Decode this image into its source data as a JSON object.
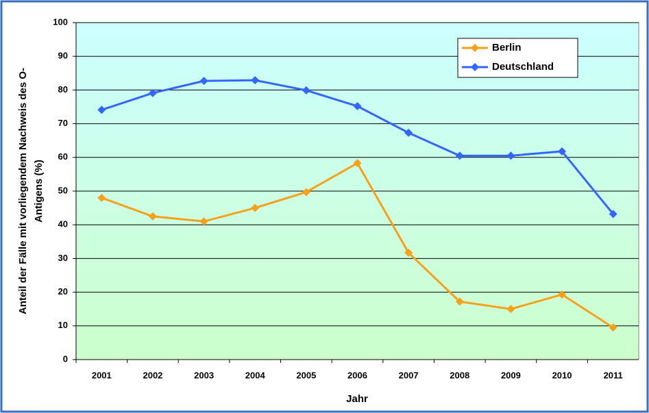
{
  "chart_data": {
    "type": "line",
    "ylabel": [
      "Anteil der Fälle mit vorliegendem Nachweis des O-",
      "Antigens (%)"
    ],
    "xlabel": "Jahr",
    "categories": [
      "2001",
      "2002",
      "2003",
      "2004",
      "2005",
      "2006",
      "2007",
      "2008",
      "2009",
      "2010",
      "2011"
    ],
    "series": [
      {
        "name": "Berlin",
        "color": "#f7a11a",
        "values": [
          48,
          42.5,
          41,
          45,
          49.7,
          58.3,
          31.7,
          17.2,
          15,
          19.3,
          9.5
        ]
      },
      {
        "name": "Deutschland",
        "color": "#3366ff",
        "values": [
          74.1,
          79.1,
          82.7,
          82.9,
          79.9,
          75.2,
          67.3,
          60.5,
          60.5,
          61.8,
          43.2
        ]
      }
    ],
    "ylim": [
      0,
      100
    ],
    "yticks": [
      0,
      10,
      20,
      30,
      40,
      50,
      60,
      70,
      80,
      90,
      100
    ],
    "grid": true,
    "legend": "top-right"
  }
}
